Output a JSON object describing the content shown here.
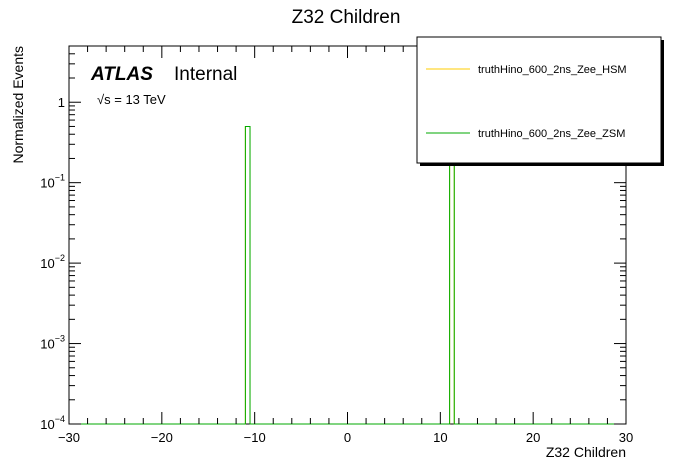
{
  "chart_data": {
    "type": "histogram",
    "title": "Z32 Children",
    "xlabel": "Z32 Children",
    "ylabel": "Normalized Events",
    "xlim": [
      -30,
      30
    ],
    "ylim": [
      0.0001,
      5
    ],
    "yscale": "log",
    "grid": false,
    "legend_position": "top-right",
    "x_ticks": [
      -30,
      -20,
      -10,
      0,
      10,
      20,
      30
    ],
    "y_tick_labels": [
      {
        "base": "10",
        "exp": "-4",
        "value": 0.0001
      },
      {
        "base": "10",
        "exp": "-3",
        "value": 0.001
      },
      {
        "base": "10",
        "exp": "-2",
        "value": 0.01
      },
      {
        "base": "10",
        "exp": "-1",
        "value": 0.1
      },
      {
        "base": "1",
        "exp": "",
        "value": 1
      }
    ],
    "atlas_label": "ATLAS",
    "atlas_status": "Internal",
    "energy_label": "√s = 13 TeV",
    "series": [
      {
        "name": "truthHino_600_2ns_Zee_HSM",
        "color": "#ffcc00",
        "bins": [
          [
            -11,
            -10.5,
            0.5
          ],
          [
            11,
            11.5,
            0.5
          ]
        ]
      },
      {
        "name": "truthHino_600_2ns_Zee_ZSM",
        "color": "#00aa00",
        "bins": [
          [
            -11,
            -10.5,
            0.5
          ],
          [
            11,
            11.5,
            0.5
          ]
        ]
      }
    ]
  }
}
